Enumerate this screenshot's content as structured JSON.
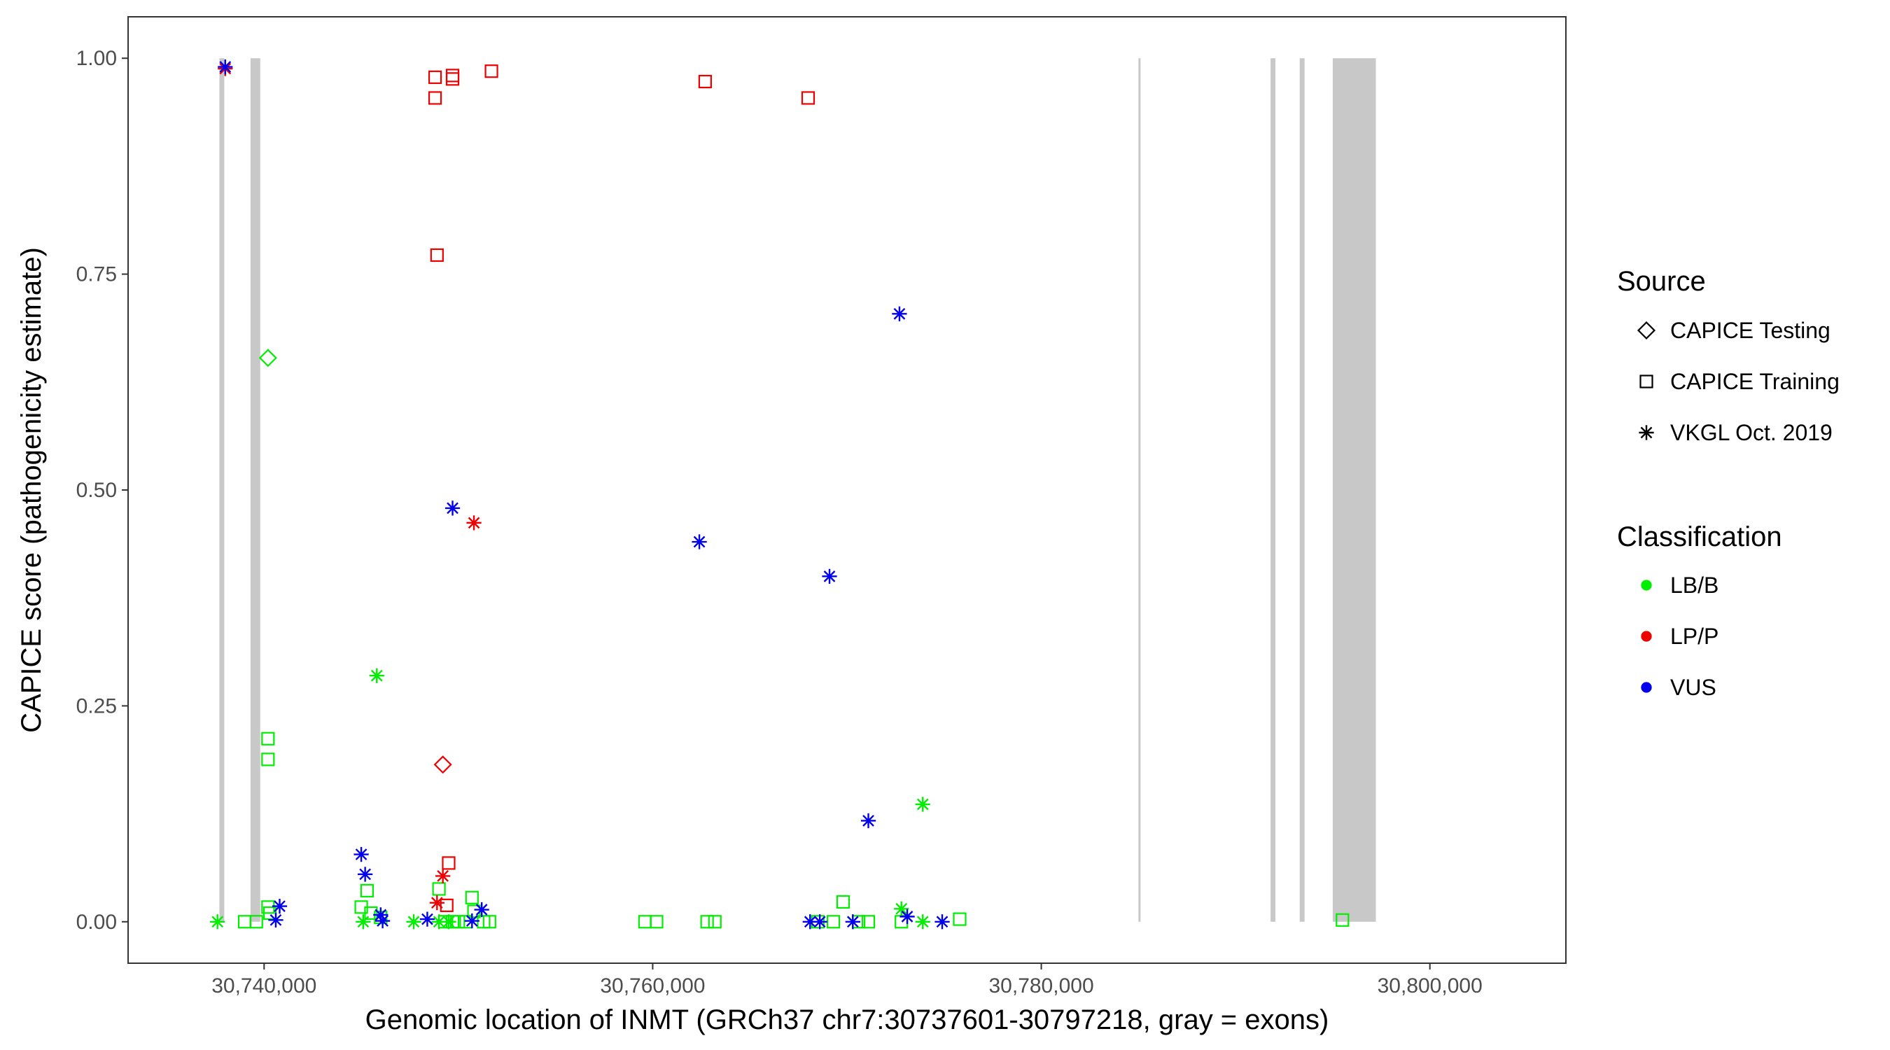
{
  "chart_data": {
    "type": "scatter",
    "xlabel": "Genomic location of INMT (GRCh37 chr7:30737601-30797218, gray = exons)",
    "ylabel": "CAPICE score (pathogenicity estimate)",
    "xlim": [
      30733000,
      30807000
    ],
    "ylim": [
      -0.048,
      1.048
    ],
    "x_ticks": [
      30740000,
      30760000,
      30780000,
      30800000
    ],
    "x_tick_labels": [
      "30,740,000",
      "30,760,000",
      "30,780,000",
      "30,800,000"
    ],
    "y_ticks": [
      0,
      0.25,
      0.5,
      0.75,
      1
    ],
    "y_tick_labels": [
      "0.00",
      "0.25",
      "0.50",
      "0.75",
      "1.00"
    ],
    "grid": false,
    "legend_position": "right",
    "exon_color": "#c8c8c8",
    "exons": [
      {
        "start": 30737700,
        "end": 30737950
      },
      {
        "start": 30739300,
        "end": 30739800
      },
      {
        "start": 30785000,
        "end": 30785070
      },
      {
        "start": 30791800,
        "end": 30792050
      },
      {
        "start": 30793300,
        "end": 30793550
      },
      {
        "start": 30795000,
        "end": 30797218
      }
    ],
    "legend": {
      "source": {
        "title": "Source",
        "items": [
          {
            "label": "CAPICE Testing",
            "shape": "diamond"
          },
          {
            "label": "CAPICE Training",
            "shape": "square"
          },
          {
            "label": "VKGL Oct. 2019",
            "shape": "asterisk"
          }
        ]
      },
      "classification": {
        "title": "Classification",
        "items": [
          {
            "label": "LB/B",
            "color": "#00ee00"
          },
          {
            "label": "LP/P",
            "color": "#ee0000"
          },
          {
            "label": "VUS",
            "color": "#0000ee"
          }
        ]
      }
    },
    "series": [
      {
        "classification": "LB/B",
        "source": "CAPICE Testing",
        "points": [
          [
            30740200,
            0.653
          ]
        ]
      },
      {
        "classification": "LP/P",
        "source": "CAPICE Testing",
        "points": [
          [
            30749200,
            0.182
          ]
        ]
      },
      {
        "classification": "LB/B",
        "source": "CAPICE Training",
        "points": [
          [
            30739000,
            0.0
          ],
          [
            30739600,
            0.0
          ],
          [
            30740200,
            0.212
          ],
          [
            30740200,
            0.188
          ],
          [
            30740200,
            0.017
          ],
          [
            30740300,
            0.01
          ],
          [
            30745000,
            0.017
          ],
          [
            30745300,
            0.036
          ],
          [
            30745500,
            0.01
          ],
          [
            30746000,
            0.005
          ],
          [
            30749000,
            0.038
          ],
          [
            30749300,
            0.0
          ],
          [
            30749700,
            0.0
          ],
          [
            30750000,
            0.0
          ],
          [
            30750400,
            0.0
          ],
          [
            30750700,
            0.028
          ],
          [
            30750800,
            0.012
          ],
          [
            30751300,
            0.0
          ],
          [
            30751600,
            0.0
          ],
          [
            30759600,
            0.0
          ],
          [
            30760200,
            0.0
          ],
          [
            30762800,
            0.0
          ],
          [
            30763200,
            0.0
          ],
          [
            30768500,
            0.0
          ],
          [
            30769300,
            0.0
          ],
          [
            30769800,
            0.023
          ],
          [
            30770600,
            0.0
          ],
          [
            30771100,
            0.0
          ],
          [
            30772800,
            0.0
          ],
          [
            30775800,
            0.003
          ],
          [
            30795500,
            0.002
          ]
        ]
      },
      {
        "classification": "LP/P",
        "source": "CAPICE Training",
        "points": [
          [
            30748800,
            0.978
          ],
          [
            30748800,
            0.954
          ],
          [
            30749700,
            0.98
          ],
          [
            30749700,
            0.976
          ],
          [
            30751700,
            0.985
          ],
          [
            30762700,
            0.973
          ],
          [
            30768000,
            0.954
          ],
          [
            30748900,
            0.772
          ],
          [
            30749500,
            0.068
          ],
          [
            30749400,
            0.019
          ]
        ]
      },
      {
        "classification": "LB/B",
        "source": "VKGL Oct. 2019",
        "points": [
          [
            30737600,
            0.0
          ],
          [
            30745800,
            0.285
          ],
          [
            30745100,
            0.0
          ],
          [
            30747700,
            0.0
          ],
          [
            30749000,
            0.0
          ],
          [
            30749500,
            0.0
          ],
          [
            30772800,
            0.015
          ],
          [
            30773900,
            0.136
          ],
          [
            30773900,
            0.0
          ]
        ]
      },
      {
        "classification": "LP/P",
        "source": "VKGL Oct. 2019",
        "points": [
          [
            30738000,
            0.988
          ],
          [
            30750800,
            0.462
          ],
          [
            30749200,
            0.053
          ],
          [
            30748900,
            0.022
          ]
        ]
      },
      {
        "classification": "VUS",
        "source": "VKGL Oct. 2019",
        "points": [
          [
            30738000,
            0.99
          ],
          [
            30740800,
            0.018
          ],
          [
            30740600,
            0.002
          ],
          [
            30745000,
            0.078
          ],
          [
            30745200,
            0.055
          ],
          [
            30746000,
            0.008
          ],
          [
            30746100,
            0.001
          ],
          [
            30748400,
            0.003
          ],
          [
            30749700,
            0.479
          ],
          [
            30750700,
            0.001
          ],
          [
            30751200,
            0.014
          ],
          [
            30762400,
            0.44
          ],
          [
            30768100,
            0.0
          ],
          [
            30768600,
            0.0
          ],
          [
            30769100,
            0.4
          ],
          [
            30770300,
            0.0
          ],
          [
            30771100,
            0.117
          ],
          [
            30772700,
            0.704
          ],
          [
            30773100,
            0.006
          ],
          [
            30774900,
            0.0
          ]
        ]
      }
    ]
  }
}
